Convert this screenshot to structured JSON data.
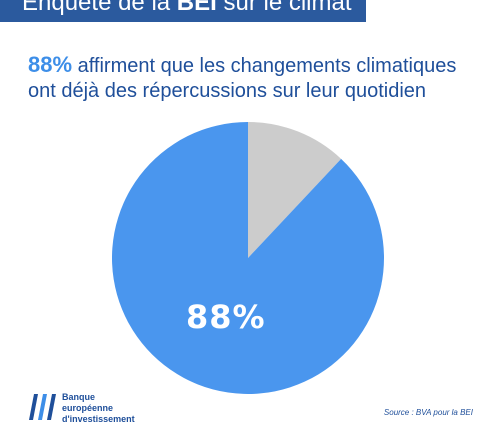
{
  "banner": {
    "prefix": "Enquête de la ",
    "bold": "BEI",
    "suffix": " sur le climat"
  },
  "headline": {
    "pct": "88%",
    "text": " affirment que les changements climatiques ont déjà des répercussions sur leur quotidien"
  },
  "chart_data": {
    "type": "pie",
    "title": "",
    "slices": [
      {
        "label": "88%",
        "value": 88,
        "color": "#4a96ee"
      },
      {
        "label": "",
        "value": 12,
        "color": "#cccccc"
      }
    ]
  },
  "logo": {
    "line1": "Banque",
    "line2": "européenne",
    "line3": "d'investissement"
  },
  "source": "Source : BVA pour la BEI"
}
